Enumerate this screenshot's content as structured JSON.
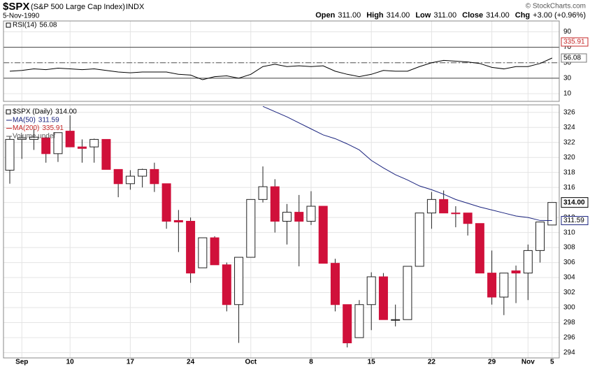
{
  "header": {
    "symbol": "$SPX",
    "name": "(S&P 500 Large Cap Index)",
    "exchange": "INDX",
    "date": "5-Nov-1990",
    "quote": [
      {
        "label": "Open",
        "value": "311.00"
      },
      {
        "label": "High",
        "value": "314.00"
      },
      {
        "label": "Low",
        "value": "311.00"
      },
      {
        "label": "Close",
        "value": "314.00"
      },
      {
        "label": "Chg",
        "value": "+3.00 (+0.96%)"
      }
    ],
    "credit": "© StockCharts.com"
  },
  "chart_data": [
    {
      "type": "line",
      "name": "RSI(14)",
      "color": "#000000",
      "values": [
        39,
        40,
        42,
        41,
        43,
        42,
        41,
        42,
        40,
        38,
        37,
        38,
        38,
        38,
        35,
        34,
        28,
        32,
        33,
        30,
        35,
        45,
        48,
        45,
        46,
        45,
        46,
        39,
        35,
        32,
        35,
        40,
        39,
        39,
        45,
        50,
        53,
        52,
        51,
        49,
        44,
        42,
        45,
        45,
        49,
        56.08
      ],
      "value_labels": {
        "45": "56.08"
      },
      "ylim": [
        0,
        104
      ],
      "yticks": [
        90,
        70,
        50,
        30,
        10
      ],
      "solid_lines": [
        70,
        30
      ],
      "dashed_lines": [
        50
      ]
    },
    {
      "type": "candlestick",
      "title": "$SPX (Daily)",
      "close_label": "314.00",
      "up_color": "#ffffff",
      "down_color": "#d0103a",
      "categories": [
        null,
        "Sep",
        null,
        null,
        null,
        "10",
        null,
        null,
        null,
        null,
        "17",
        null,
        null,
        null,
        null,
        "24",
        null,
        null,
        null,
        null,
        "Oct",
        null,
        null,
        null,
        null,
        "8",
        null,
        null,
        null,
        null,
        "15",
        null,
        null,
        null,
        null,
        "22",
        null,
        null,
        null,
        null,
        "29",
        null,
        null,
        "Nov",
        null,
        "5"
      ],
      "open": [
        318.3,
        322.4,
        322.4,
        322.6,
        320.5,
        323.5,
        321.4,
        321.4,
        322.4,
        318.4,
        316.5,
        317.5,
        318.4,
        316.5,
        311.6,
        311.5,
        305.3,
        309.3,
        305.7,
        300.4,
        306.7,
        314.4,
        316.1,
        311.5,
        312.7,
        311.5,
        313.5,
        305.9,
        300.4,
        296,
        300.4,
        304.1,
        298.4,
        298.4,
        305.5,
        312.6,
        314.4,
        312.6,
        312.6,
        311.2,
        304.6,
        301.4,
        304.9,
        304.6,
        307.6,
        311
      ],
      "high": [
        322.8,
        323,
        323.8,
        322.7,
        323.3,
        325.6,
        322.4,
        322.5,
        322.4,
        318.4,
        318.3,
        318.5,
        319.3,
        316.5,
        313,
        312,
        309.3,
        309.5,
        306,
        306.7,
        314.4,
        318.8,
        317.1,
        313.8,
        315,
        315.5,
        313.5,
        306.5,
        300.4,
        301,
        304.7,
        304.6,
        300.4,
        305.5,
        312.6,
        315.4,
        315.6,
        313.5,
        312.6,
        311.2,
        307.6,
        304.6,
        305.6,
        308.4,
        311.4,
        314
      ],
      "low": [
        316.5,
        319.8,
        321,
        319.3,
        319.4,
        321.4,
        319.3,
        319.3,
        318.4,
        314.7,
        315.7,
        316,
        315.4,
        310.5,
        307.4,
        303.3,
        305.3,
        305.7,
        299.5,
        295.3,
        306.7,
        314,
        310,
        308.4,
        305.5,
        311,
        305.9,
        299.5,
        294.7,
        296,
        297,
        298.4,
        297.5,
        298.4,
        305.5,
        310.5,
        312.6,
        310.7,
        309.6,
        304.6,
        300.4,
        299,
        300.6,
        301,
        306,
        311
      ],
      "close": [
        322.4,
        322.6,
        322.7,
        320.5,
        323.3,
        321.4,
        321.2,
        322.4,
        318.4,
        316.5,
        317.5,
        318.4,
        316.5,
        311.5,
        311.4,
        304.6,
        309.3,
        305.7,
        300.4,
        306.7,
        314.4,
        316.1,
        311.5,
        312.7,
        311.5,
        313.5,
        305.9,
        300.4,
        295.3,
        300.4,
        304.1,
        298.4,
        298.4,
        305.5,
        312.6,
        314.4,
        312.6,
        312.5,
        311.2,
        304.6,
        301.4,
        304.6,
        304.6,
        307.6,
        311.4,
        314
      ],
      "series": [
        {
          "name": "MA(50)",
          "color": "#1a237e",
          "value_label": "311.59",
          "values": [
            null,
            null,
            null,
            null,
            null,
            null,
            null,
            null,
            null,
            null,
            null,
            null,
            null,
            null,
            null,
            null,
            null,
            null,
            null,
            null,
            null,
            326.8,
            326.1,
            325.4,
            324.6,
            323.8,
            323,
            322.5,
            321.8,
            321,
            319.6,
            318.6,
            317.7,
            317,
            316.2,
            315.7,
            315.1,
            314.4,
            313.9,
            313.4,
            313,
            312.6,
            312.2,
            312,
            311.6,
            311.59
          ]
        },
        {
          "name": "MA(200)",
          "color": "#c62828",
          "value": 335.91,
          "value_label": "335.91"
        },
        {
          "name": "Volume undef",
          "color": "#555555"
        }
      ],
      "ylim": [
        293.3,
        327
      ],
      "yticks": [
        294,
        296,
        298,
        300,
        302,
        304,
        306,
        308,
        310,
        312,
        314,
        316,
        318,
        320,
        322,
        324,
        326
      ],
      "grid": true
    }
  ]
}
